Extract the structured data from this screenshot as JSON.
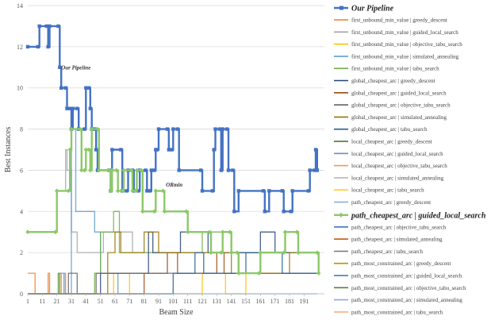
{
  "chart_data": {
    "type": "line",
    "xlabel": "Beam Size",
    "ylabel": "Best Instances",
    "xlim": [
      1,
      205
    ],
    "ylim": [
      0,
      14
    ],
    "x_ticks": [
      "1",
      "11",
      "21",
      "31",
      "41",
      "51",
      "61",
      "71",
      "81",
      "91",
      "101",
      "111",
      "121",
      "131",
      "141",
      "151",
      "161",
      "171",
      "181",
      "191"
    ],
    "y_ticks": [
      "0",
      "2",
      "4",
      "6",
      "8",
      "10",
      "12",
      "14"
    ],
    "grid": "horizontal",
    "legend_position": "right",
    "annotations": [
      {
        "text": "Our Pipeline",
        "x": 24,
        "y": 10.9
      },
      {
        "text": "ORmin",
        "x": 96,
        "y": 5.2
      }
    ],
    "series": [
      {
        "name": "Our Pipeline",
        "color": "#4472C4",
        "highlight": true,
        "marker": "square",
        "points": [
          [
            1,
            12
          ],
          [
            8,
            12
          ],
          [
            9,
            13
          ],
          [
            14,
            13
          ],
          [
            15,
            12
          ],
          [
            16,
            13
          ],
          [
            22,
            13
          ],
          [
            23,
            11
          ],
          [
            24,
            10
          ],
          [
            27,
            10
          ],
          [
            28,
            9
          ],
          [
            30,
            9
          ],
          [
            31,
            8
          ],
          [
            32,
            9
          ],
          [
            35,
            9
          ],
          [
            36,
            8
          ],
          [
            40,
            8
          ],
          [
            41,
            10
          ],
          [
            43,
            10
          ],
          [
            44,
            9
          ],
          [
            45,
            8
          ],
          [
            47,
            8
          ],
          [
            48,
            7
          ],
          [
            49,
            6
          ],
          [
            57,
            6
          ],
          [
            58,
            5
          ],
          [
            59,
            7
          ],
          [
            65,
            7
          ],
          [
            66,
            5
          ],
          [
            69,
            5
          ],
          [
            70,
            6
          ],
          [
            73,
            6
          ],
          [
            74,
            5
          ],
          [
            77,
            5
          ],
          [
            78,
            6
          ],
          [
            82,
            6
          ],
          [
            83,
            5
          ],
          [
            85,
            5
          ],
          [
            86,
            6
          ],
          [
            88,
            6
          ],
          [
            89,
            7
          ],
          [
            90,
            7
          ],
          [
            91,
            8
          ],
          [
            97,
            8
          ],
          [
            98,
            7
          ],
          [
            100,
            7
          ],
          [
            101,
            8
          ],
          [
            104,
            8
          ],
          [
            105,
            6
          ],
          [
            120,
            6
          ],
          [
            121,
            5
          ],
          [
            128,
            5
          ],
          [
            129,
            7
          ],
          [
            130,
            8
          ],
          [
            133,
            8
          ],
          [
            134,
            6
          ],
          [
            135,
            8
          ],
          [
            138,
            8
          ],
          [
            139,
            6
          ],
          [
            142,
            6
          ],
          [
            143,
            4
          ],
          [
            146,
            5
          ],
          [
            163,
            5
          ],
          [
            164,
            4
          ],
          [
            167,
            5
          ],
          [
            176,
            5
          ],
          [
            177,
            4
          ],
          [
            182,
            4
          ],
          [
            183,
            5
          ],
          [
            194,
            5
          ],
          [
            195,
            6
          ],
          [
            198,
            6
          ],
          [
            199,
            7
          ],
          [
            200,
            6
          ]
        ]
      },
      {
        "name": "first_unbound_min_value | greedy_descent",
        "color": "#ED7D31",
        "points": []
      },
      {
        "name": "first_unbound_min_value | guided_local_search",
        "color": "#A5A5A5",
        "points": []
      },
      {
        "name": "first_unbound_min_value | objective_tabu_search",
        "color": "#FFC000",
        "points": []
      },
      {
        "name": "first_unbound_min_value | simulated_annealing",
        "color": "#5B9BD5",
        "points": []
      },
      {
        "name": "first_unbound_min_value | tabu_search",
        "color": "#70AD47",
        "points": []
      },
      {
        "name": "global_cheapest_arc | greedy_descent",
        "color": "#264478",
        "points": []
      },
      {
        "name": "global_cheapest_arc | guided_local_search",
        "color": "#9E480E",
        "points": []
      },
      {
        "name": "global_cheapest_arc | objective_tabu_search",
        "color": "#636363",
        "points": []
      },
      {
        "name": "global_cheapest_arc | simulated_annealing",
        "color": "#997300",
        "points": []
      },
      {
        "name": "global_cheapest_arc | tabu_search",
        "color": "#255E91",
        "points": []
      },
      {
        "name": "local_cheapest_arc | greedy_descent",
        "color": "#43682B",
        "points": []
      },
      {
        "name": "local_cheapest_arc | guided_local_search",
        "color": "#698ED0",
        "points": []
      },
      {
        "name": "local_cheapest_arc | objective_tabu_search",
        "color": "#F1975A",
        "points": []
      },
      {
        "name": "local_cheapest_arc | simulated_annealing",
        "color": "#B7B7B7",
        "points": []
      },
      {
        "name": "local_cheapest_arc | tabu_search",
        "color": "#FFCD33",
        "points": []
      },
      {
        "name": "path_cheapest_arc | greedy_descent",
        "color": "#7CAFDD",
        "points": []
      },
      {
        "name": "path_cheapest_arc | guided_local_search",
        "color": "#8BC867",
        "highlight": true,
        "marker": "diamond",
        "points": [
          [
            1,
            3
          ],
          [
            20,
            3
          ],
          [
            21,
            5
          ],
          [
            29,
            5
          ],
          [
            30,
            7
          ],
          [
            31,
            8
          ],
          [
            37,
            8
          ],
          [
            38,
            6
          ],
          [
            40,
            6
          ],
          [
            41,
            7
          ],
          [
            43,
            7
          ],
          [
            44,
            6
          ],
          [
            45,
            8
          ],
          [
            49,
            8
          ],
          [
            50,
            6
          ],
          [
            57,
            6
          ],
          [
            58,
            5
          ],
          [
            59,
            6
          ],
          [
            62,
            6
          ],
          [
            63,
            5
          ],
          [
            66,
            5
          ],
          [
            67,
            6
          ],
          [
            72,
            6
          ],
          [
            73,
            5
          ],
          [
            75,
            5
          ],
          [
            76,
            6
          ],
          [
            79,
            6
          ],
          [
            80,
            4
          ],
          [
            88,
            4
          ],
          [
            89,
            5
          ],
          [
            94,
            5
          ],
          [
            95,
            4
          ],
          [
            110,
            4
          ],
          [
            111,
            3
          ],
          [
            126,
            3
          ],
          [
            127,
            2
          ],
          [
            134,
            2
          ],
          [
            135,
            3
          ],
          [
            140,
            3
          ],
          [
            141,
            2
          ],
          [
            145,
            2
          ],
          [
            146,
            1
          ],
          [
            160,
            1
          ],
          [
            161,
            2
          ],
          [
            177,
            2
          ],
          [
            178,
            3
          ],
          [
            186,
            3
          ],
          [
            187,
            2
          ],
          [
            200,
            2
          ],
          [
            201,
            1
          ]
        ]
      },
      {
        "name": "path_cheapest_arc | objective_tabu_search",
        "color": "#4472C4",
        "points": []
      },
      {
        "name": "path_cheapest_arc | simulated_annealing",
        "color": "#C55A11",
        "points": []
      },
      {
        "name": "path_cheapest_arc | tabu_search",
        "color": "#808080",
        "points": []
      },
      {
        "name": "path_most_constrained_arc | greedy_descent",
        "color": "#C09000",
        "points": []
      },
      {
        "name": "path_most_constrained_arc | guided_local_search",
        "color": "#2E75B6",
        "points": []
      },
      {
        "name": "path_most_constrained_arc | objective_tabu_search",
        "color": "#548235",
        "points": []
      },
      {
        "name": "path_most_constrained_arc | simulated_annealing",
        "color": "#8FAADC",
        "points": []
      },
      {
        "name": "path_most_constrained_arc | tabu_search",
        "color": "#F4B183",
        "points": []
      }
    ]
  }
}
